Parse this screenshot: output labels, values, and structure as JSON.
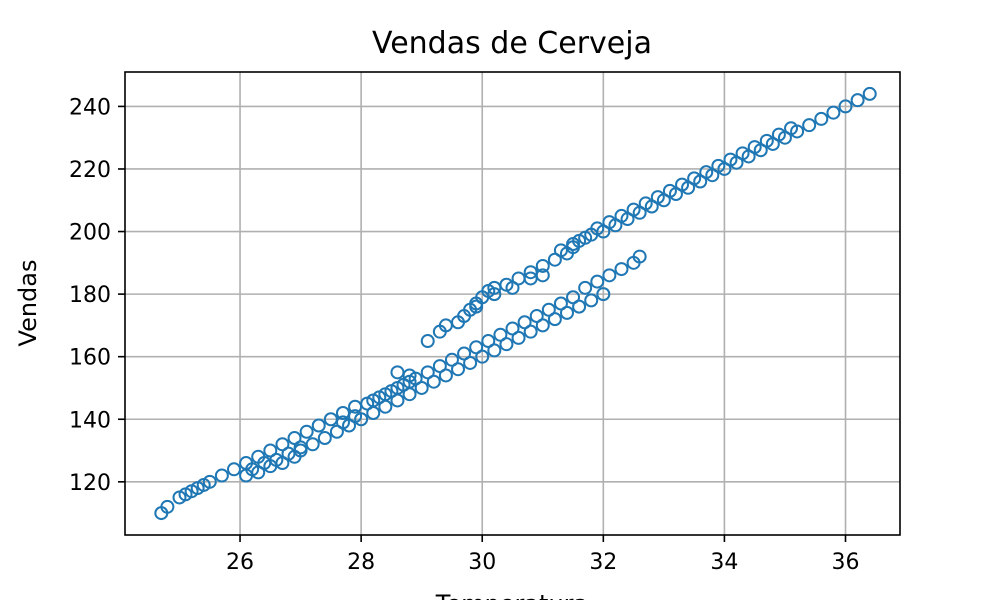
{
  "chart_data": {
    "type": "scatter",
    "title": "Vendas de Cerveja",
    "xlabel": "Temperatura",
    "ylabel": "Vendas",
    "xlim": [
      24.1,
      36.9
    ],
    "ylim": [
      103.0,
      251.0
    ],
    "xticks": [
      26,
      28,
      30,
      32,
      34,
      36
    ],
    "yticks": [
      120,
      140,
      160,
      180,
      200,
      220,
      240
    ],
    "grid": true,
    "marker": "open-circle",
    "color": "#1f77b4",
    "series": [
      {
        "points": [
          [
            24.7,
            110
          ],
          [
            24.8,
            112
          ],
          [
            25.0,
            115
          ],
          [
            25.1,
            116
          ],
          [
            25.2,
            117
          ],
          [
            25.3,
            118
          ],
          [
            25.4,
            119
          ],
          [
            25.5,
            120
          ],
          [
            25.7,
            122
          ],
          [
            25.9,
            124
          ],
          [
            26.1,
            126
          ],
          [
            26.3,
            128
          ],
          [
            26.5,
            130
          ],
          [
            26.7,
            132
          ],
          [
            26.9,
            134
          ],
          [
            27.1,
            136
          ],
          [
            27.3,
            138
          ],
          [
            27.5,
            140
          ],
          [
            27.7,
            142
          ],
          [
            27.9,
            144
          ],
          [
            28.1,
            145
          ],
          [
            28.3,
            147
          ],
          [
            28.5,
            149
          ],
          [
            28.7,
            151
          ],
          [
            28.9,
            153
          ],
          [
            29.1,
            155
          ],
          [
            29.3,
            157
          ],
          [
            29.5,
            159
          ],
          [
            29.7,
            161
          ],
          [
            29.9,
            163
          ],
          [
            30.1,
            165
          ],
          [
            30.3,
            167
          ],
          [
            30.5,
            169
          ],
          [
            30.7,
            171
          ],
          [
            30.9,
            173
          ],
          [
            31.1,
            175
          ],
          [
            31.3,
            177
          ],
          [
            31.5,
            179
          ],
          [
            31.7,
            182
          ],
          [
            31.9,
            184
          ],
          [
            32.1,
            186
          ],
          [
            32.3,
            188
          ],
          [
            32.5,
            190
          ],
          [
            32.6,
            192
          ]
        ]
      },
      {
        "points": [
          [
            26.1,
            122
          ],
          [
            26.3,
            123
          ],
          [
            26.5,
            125
          ],
          [
            26.7,
            126
          ],
          [
            26.9,
            128
          ],
          [
            27.0,
            130
          ],
          [
            27.2,
            132
          ],
          [
            27.4,
            134
          ],
          [
            27.6,
            136
          ],
          [
            27.8,
            138
          ],
          [
            28.0,
            140
          ],
          [
            28.2,
            142
          ],
          [
            28.4,
            144
          ],
          [
            28.6,
            146
          ],
          [
            28.8,
            148
          ],
          [
            29.0,
            150
          ],
          [
            29.2,
            152
          ],
          [
            29.4,
            154
          ],
          [
            29.6,
            156
          ],
          [
            29.8,
            158
          ],
          [
            30.0,
            160
          ],
          [
            30.2,
            162
          ],
          [
            30.4,
            164
          ],
          [
            30.6,
            166
          ],
          [
            30.8,
            168
          ],
          [
            31.0,
            170
          ],
          [
            31.2,
            172
          ],
          [
            31.4,
            174
          ],
          [
            31.6,
            176
          ],
          [
            31.8,
            178
          ],
          [
            32.0,
            180
          ]
        ]
      },
      {
        "points": [
          [
            29.1,
            165
          ],
          [
            29.3,
            168
          ],
          [
            29.4,
            170
          ],
          [
            29.6,
            171
          ],
          [
            29.7,
            173
          ],
          [
            29.8,
            175
          ],
          [
            29.9,
            177
          ],
          [
            30.0,
            179
          ],
          [
            30.1,
            181
          ],
          [
            30.2,
            182
          ],
          [
            30.4,
            183
          ],
          [
            30.6,
            185
          ],
          [
            30.8,
            187
          ],
          [
            31.0,
            189
          ],
          [
            31.2,
            191
          ],
          [
            31.4,
            193
          ],
          [
            31.5,
            195
          ],
          [
            31.6,
            197
          ],
          [
            31.8,
            199
          ],
          [
            32.0,
            200
          ],
          [
            32.2,
            202
          ],
          [
            32.4,
            204
          ],
          [
            32.6,
            206
          ],
          [
            32.8,
            208
          ],
          [
            33.0,
            210
          ],
          [
            33.2,
            212
          ],
          [
            33.4,
            214
          ],
          [
            33.6,
            216
          ],
          [
            33.8,
            218
          ],
          [
            34.0,
            220
          ],
          [
            34.2,
            222
          ],
          [
            34.4,
            224
          ],
          [
            34.6,
            226
          ],
          [
            34.8,
            228
          ],
          [
            35.0,
            230
          ],
          [
            35.2,
            232
          ],
          [
            35.4,
            234
          ],
          [
            35.6,
            236
          ],
          [
            35.8,
            238
          ],
          [
            36.0,
            240
          ],
          [
            36.2,
            242
          ],
          [
            36.4,
            244
          ]
        ]
      },
      {
        "points": [
          [
            31.3,
            194
          ],
          [
            31.5,
            196
          ],
          [
            31.7,
            198
          ],
          [
            31.9,
            201
          ],
          [
            32.1,
            203
          ],
          [
            32.3,
            205
          ],
          [
            32.5,
            207
          ],
          [
            32.7,
            209
          ],
          [
            32.9,
            211
          ],
          [
            33.1,
            213
          ],
          [
            33.3,
            215
          ],
          [
            33.5,
            217
          ],
          [
            33.7,
            219
          ],
          [
            33.9,
            221
          ],
          [
            34.1,
            223
          ],
          [
            34.3,
            225
          ],
          [
            34.5,
            227
          ],
          [
            34.7,
            229
          ],
          [
            34.9,
            231
          ],
          [
            35.1,
            233
          ]
        ]
      },
      {
        "points": [
          [
            28.2,
            146
          ],
          [
            28.4,
            148
          ],
          [
            28.6,
            150
          ],
          [
            28.8,
            152
          ],
          [
            28.6,
            155
          ],
          [
            28.8,
            154
          ],
          [
            27.7,
            139
          ],
          [
            27.9,
            141
          ],
          [
            27.0,
            131
          ],
          [
            26.8,
            129
          ],
          [
            26.6,
            127
          ],
          [
            26.4,
            126
          ],
          [
            26.2,
            124
          ],
          [
            31.0,
            186
          ],
          [
            30.8,
            185
          ],
          [
            30.5,
            182
          ],
          [
            30.2,
            180
          ],
          [
            29.9,
            176
          ]
        ]
      }
    ]
  }
}
